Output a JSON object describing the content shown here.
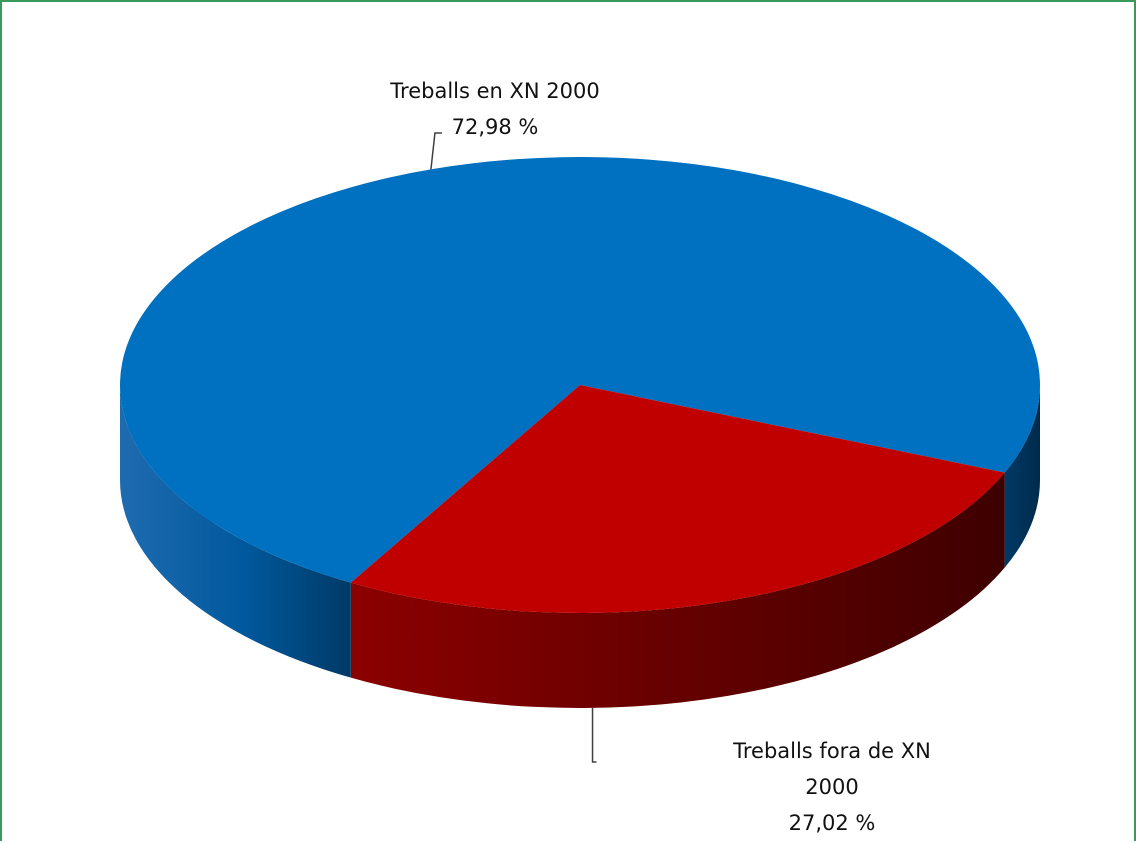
{
  "chart_data": {
    "type": "pie",
    "style": "3d",
    "title": "",
    "series": [
      {
        "values": [
          72.98,
          27.02
        ],
        "categories": [
          "Treballs en XN 2000",
          "Treballs fora de XN 2000"
        ]
      }
    ],
    "slices": [
      {
        "label_lines": [
          "Treballs en XN 2000"
        ],
        "value": 72.98,
        "value_label": "72,98 %",
        "color": "#0070c0"
      },
      {
        "label_lines": [
          "Treballs fora de XN",
          "2000"
        ],
        "value": 27.02,
        "value_label": "27,02 %",
        "color": "#c00000"
      }
    ],
    "legend": "none",
    "frame_color": "#3a9a5c"
  }
}
